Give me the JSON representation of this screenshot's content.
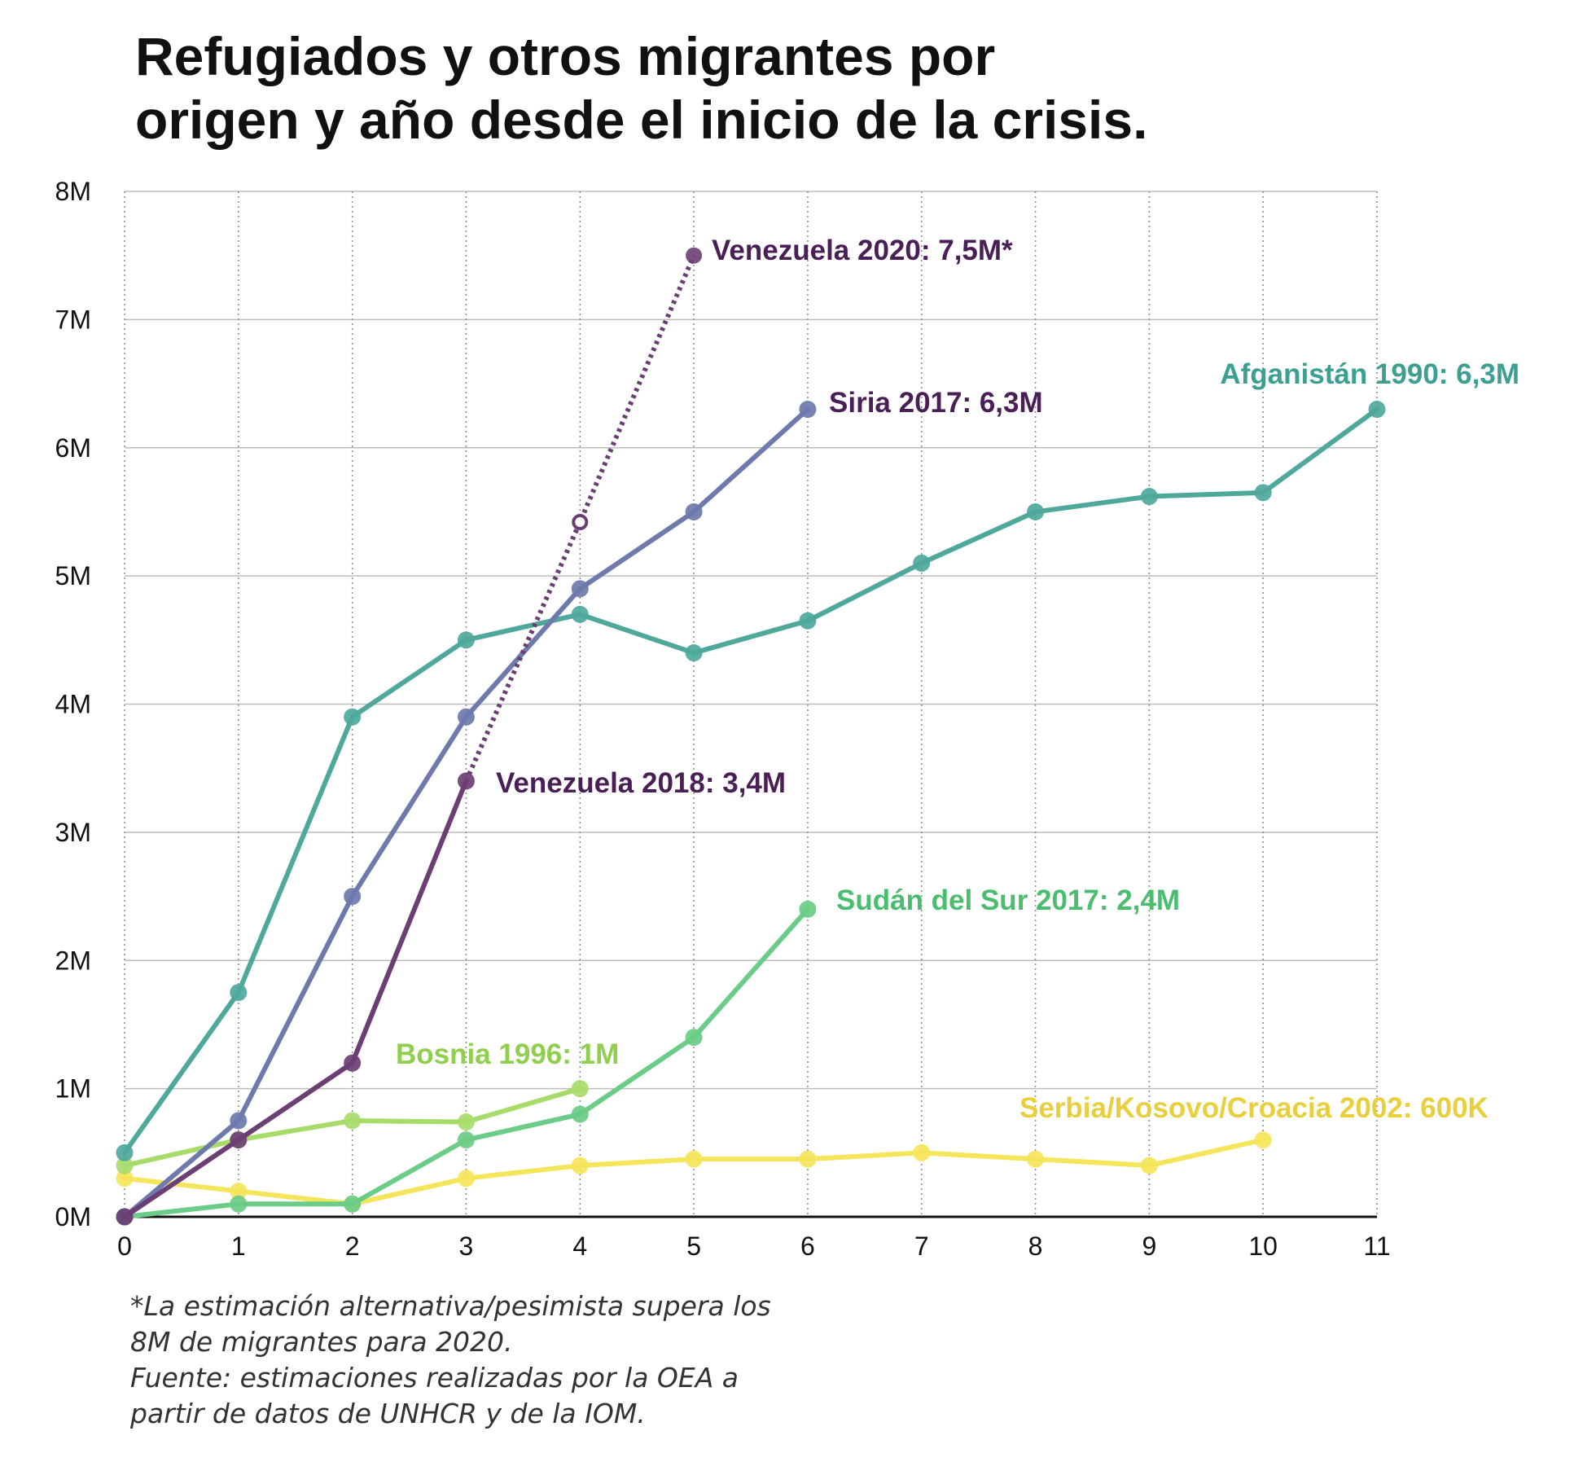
{
  "title": {
    "line1": "Refugiados y otros migrantes por",
    "line2": "origen y año desde el inicio de la crisis."
  },
  "footnote": {
    "line1": "*La estimación alternativa/pesimista supera los",
    "line2": "8M de migrantes para 2020.",
    "line3": "Fuente: estimaciones realizadas por la OEA a",
    "line4": "partir de datos de UNHCR y de la IOM."
  },
  "chart_data": {
    "type": "line",
    "x": [
      0,
      1,
      2,
      3,
      4,
      5,
      6,
      7,
      8,
      9,
      10,
      11
    ],
    "xlim": [
      0,
      11
    ],
    "ylim": [
      0,
      8
    ],
    "yticks": [
      {
        "value": 0,
        "label": "0M"
      },
      {
        "value": 1,
        "label": "1M"
      },
      {
        "value": 2,
        "label": "2M"
      },
      {
        "value": 3,
        "label": "3M"
      },
      {
        "value": 4,
        "label": "4M"
      },
      {
        "value": 5,
        "label": "5M"
      },
      {
        "value": 6,
        "label": "6M"
      },
      {
        "value": 7,
        "label": "7M"
      },
      {
        "value": 8,
        "label": "8M"
      }
    ],
    "xticks": [
      "0",
      "1",
      "2",
      "3",
      "4",
      "5",
      "6",
      "7",
      "8",
      "9",
      "10",
      "11"
    ],
    "grid": true,
    "series": [
      {
        "id": "serbia",
        "color": "#f5e55a",
        "x": [
          0,
          1,
          2,
          3,
          4,
          5,
          6,
          7,
          8,
          9,
          10
        ],
        "y": [
          0.3,
          0.2,
          0.1,
          0.3,
          0.4,
          0.45,
          0.45,
          0.5,
          0.45,
          0.4,
          0.6
        ],
        "label": "Serbia/Kosovo/Croacia 2002: 600K"
      },
      {
        "id": "bosnia",
        "color": "#a8dc6a",
        "x": [
          0,
          1,
          2,
          3,
          4
        ],
        "y": [
          0.4,
          0.6,
          0.75,
          0.74,
          1.0
        ],
        "label": "Bosnia 1996: 1M"
      },
      {
        "id": "sudan",
        "color": "#6acc86",
        "x": [
          0,
          1,
          2,
          3,
          4,
          5,
          6
        ],
        "y": [
          0,
          0.1,
          0.1,
          0.6,
          0.8,
          1.4,
          2.4
        ],
        "label": "Sudán del Sur 2017: 2,4M"
      },
      {
        "id": "afganistan",
        "color": "#4ea89c",
        "x": [
          0,
          1,
          2,
          3,
          4,
          5,
          6,
          7,
          8,
          9,
          10,
          11
        ],
        "y": [
          0.5,
          1.75,
          3.9,
          4.5,
          4.7,
          4.4,
          4.65,
          5.1,
          5.5,
          5.62,
          5.65,
          6.3
        ],
        "label": "Afganistán 1990: 6,3M"
      },
      {
        "id": "siria",
        "color": "#6e7aac",
        "x": [
          0,
          1,
          2,
          3,
          4,
          5,
          6
        ],
        "y": [
          0,
          0.75,
          2.5,
          3.9,
          4.9,
          5.5,
          6.3
        ],
        "label": "Siria 2017: 6,3M"
      },
      {
        "id": "venezuela",
        "color": "#6b3f73",
        "x": [
          0,
          1,
          2,
          3
        ],
        "y": [
          0,
          0.6,
          1.2,
          3.4
        ],
        "label": "Venezuela 2018: 3,4M",
        "projection": {
          "x": [
            3,
            4,
            5
          ],
          "y": [
            3.4,
            5.42,
            7.5
          ],
          "label": "Venezuela 2020: 7,5M*"
        }
      }
    ]
  }
}
